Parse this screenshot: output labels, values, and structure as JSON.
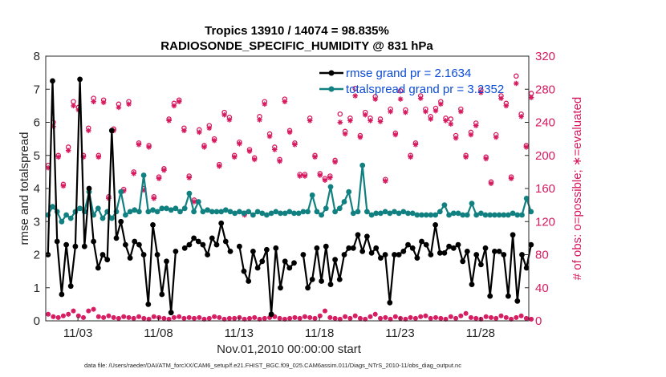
{
  "chart_data": {
    "type": "line",
    "title_line1": "Tropics 13910 / 14074 = 98.835%",
    "title_line2": "RADIOSONDE_SPECIFIC_HUMIDITY @ 831 hPa",
    "xlabel": "Nov.01,2010 00:00:00 start",
    "ylabel": "rmse and totalspread",
    "ylabel_right": "# of obs: o=possible; ∗=evaluated",
    "ylim": [
      0,
      8
    ],
    "ylim_right": [
      0,
      320
    ],
    "yticks": [
      "0",
      "1",
      "2",
      "3",
      "4",
      "5",
      "6",
      "7",
      "8"
    ],
    "yticks_right": [
      "0",
      "40",
      "80",
      "120",
      "160",
      "200",
      "240",
      "280",
      "320"
    ],
    "xlim": [
      1.0,
      31.0
    ],
    "xticks": [
      {
        "value": 3,
        "label": "11/03"
      },
      {
        "value": 8,
        "label": "11/08"
      },
      {
        "value": 13,
        "label": "11/13"
      },
      {
        "value": 18,
        "label": "11/18"
      },
      {
        "value": 23,
        "label": "11/23"
      },
      {
        "value": 28,
        "label": "11/28"
      }
    ],
    "legend": [
      {
        "name": "rmse grand pr = 2.1634",
        "color": "#000000"
      },
      {
        "name": "totalspread grand pr = 3.2352",
        "color": "#118080"
      }
    ],
    "series": [
      {
        "name": "rmse",
        "color": "#000000",
        "values": [
          2.0,
          7.25,
          2.4,
          0.8,
          2.3,
          1.05,
          2.25,
          7.3,
          2.25,
          4.0,
          2.4,
          1.6,
          2.0,
          1.85,
          5.75,
          2.5,
          3.0,
          2.3,
          1.9,
          2.4,
          2.3,
          2.0,
          0.5,
          2.9,
          2.0,
          0.8,
          1.8,
          0.25,
          2.1,
          null,
          2.2,
          2.3,
          2.5,
          2.4,
          2.3,
          2.0,
          2.5,
          2.3,
          2.95,
          2.4,
          2.1,
          null,
          2.25,
          1.5,
          1.2,
          2.1,
          1.6,
          1.8,
          2.15,
          0.2,
          2.2,
          1.0,
          1.8,
          1.6,
          1.75,
          null,
          2.0,
          1.0,
          1.25,
          2.2,
          1.2,
          2.25,
          1.1,
          1.85,
          1.25,
          2.0,
          2.2,
          2.2,
          2.6,
          2.1,
          2.55,
          2.05,
          2.2,
          1.9,
          2.0,
          0.55,
          2.0,
          2.0,
          2.1,
          2.3,
          2.2,
          1.9,
          2.4,
          2.3,
          2.0,
          2.9,
          2.05,
          2.05,
          2.25,
          2.2,
          2.3,
          1.8,
          2.1,
          1.1,
          2.0,
          1.7,
          2.2,
          0.75,
          2.1,
          2.1,
          2.0,
          0.75,
          2.6,
          0.6,
          2.0,
          1.6,
          2.3
        ]
      },
      {
        "name": "totalspread",
        "color": "#118080",
        "values": [
          3.2,
          3.45,
          3.3,
          3.0,
          3.2,
          3.1,
          3.3,
          3.4,
          3.3,
          3.9,
          3.2,
          3.4,
          3.1,
          3.3,
          3.1,
          3.3,
          3.9,
          3.2,
          3.3,
          3.35,
          3.3,
          4.4,
          3.3,
          3.35,
          3.3,
          3.4,
          3.4,
          3.35,
          3.4,
          3.3,
          3.4,
          3.85,
          3.3,
          3.6,
          3.3,
          3.35,
          3.3,
          3.3,
          3.3,
          3.35,
          3.3,
          3.25,
          3.3,
          3.25,
          3.3,
          3.2,
          3.3,
          3.25,
          3.2,
          3.25,
          3.3,
          3.25,
          3.25,
          3.3,
          3.25,
          3.25,
          3.3,
          3.3,
          3.8,
          3.3,
          3.2,
          3.4,
          4.05,
          3.3,
          3.4,
          3.6,
          3.9,
          3.25,
          3.3,
          4.7,
          3.3,
          3.2,
          3.25,
          3.25,
          3.3,
          3.25,
          3.3,
          3.25,
          3.3,
          3.25,
          3.25,
          3.2,
          3.2,
          3.2,
          3.2,
          3.2,
          3.3,
          3.5,
          3.2,
          3.25,
          3.25,
          3.2,
          3.2,
          3.55,
          3.2,
          3.25,
          3.2,
          3.2,
          3.2,
          3.2,
          3.2,
          3.2,
          3.25,
          3.2,
          3.2,
          3.7,
          3.3
        ]
      },
      {
        "name": "obs possible",
        "color": "#d6195f",
        "axis": "right",
        "values": [
          188,
          240,
          200,
          165,
          210,
          265,
          258,
          200,
          233,
          269,
          200,
          267,
          150,
          232,
          262,
          159,
          265,
          180,
          215,
          160,
          212,
          150,
          174,
          184,
          244,
          263,
          267,
          233,
          175,
          146,
          231,
          212,
          236,
          220,
          189,
          252,
          246,
          200,
          216,
          130,
          207,
          197,
          247,
          265,
          226,
          210,
          195,
          268,
          230,
          215,
          177,
          177,
          245,
          200,
          178,
          172,
          175,
          194,
          250,
          229,
          245,
          281,
          224,
          252,
          245,
          271,
          244,
          171,
          256,
          227,
          278,
          255,
          200,
          215,
          272,
          256,
          247,
          257,
          265,
          245,
          244,
          224,
          256,
          200,
          228,
          239,
          279,
          198,
          168,
          225,
          272,
          263,
          174,
          296,
          250,
          212,
          275
        ]
      },
      {
        "name": "obs evaluated",
        "color": "#d6195f",
        "axis": "right",
        "values": [
          185,
          235,
          198,
          163,
          206,
          260,
          255,
          198,
          230,
          265,
          198,
          264,
          148,
          230,
          258,
          157,
          262,
          178,
          213,
          158,
          210,
          148,
          172,
          182,
          242,
          260,
          265,
          230,
          173,
          144,
          228,
          210,
          233,
          218,
          187,
          249,
          243,
          198,
          214,
          128,
          205,
          195,
          243,
          262,
          223,
          207,
          193,
          265,
          228,
          213,
          175,
          175,
          242,
          198,
          176,
          170,
          173,
          192,
          240,
          226,
          242,
          272,
          222,
          249,
          242,
          268,
          241,
          169,
          253,
          225,
          268,
          252,
          198,
          213,
          269,
          253,
          244,
          254,
          262,
          242,
          238,
          221,
          253,
          198,
          225,
          236,
          276,
          196,
          166,
          222,
          269,
          260,
          172,
          287,
          247,
          210,
          270
        ]
      },
      {
        "name": "obs bottom",
        "color": "#d6195f",
        "axis": "right",
        "values": [
          8,
          5,
          4,
          6,
          8,
          12,
          6,
          4,
          12,
          14,
          5,
          4,
          6,
          4,
          3,
          5,
          4,
          3,
          5,
          3,
          2,
          5,
          4,
          3,
          2,
          4,
          5,
          3,
          4,
          3,
          4,
          2,
          3,
          5,
          4,
          2,
          3,
          3,
          4,
          2,
          3,
          4,
          2,
          3,
          4,
          5,
          3,
          2,
          3,
          4,
          3,
          5,
          4,
          3,
          6,
          12,
          4,
          3,
          2,
          5,
          3,
          6,
          3,
          2,
          5,
          8,
          3,
          4,
          2,
          5,
          3,
          2,
          4,
          3,
          5,
          6,
          3,
          4,
          3,
          2,
          5,
          3,
          6,
          9,
          4,
          3,
          2,
          5,
          4,
          3,
          6,
          4,
          2,
          4,
          6,
          3,
          2
        ]
      }
    ]
  },
  "footnote": "data file: /Users/raeder/DAI/ATM_forcXX/CAM6_setup/f.e21.FHIST_BGC.f09_025.CAM6assim.011/Diags_NTrS_2010-11/obs_diag_output.nc"
}
